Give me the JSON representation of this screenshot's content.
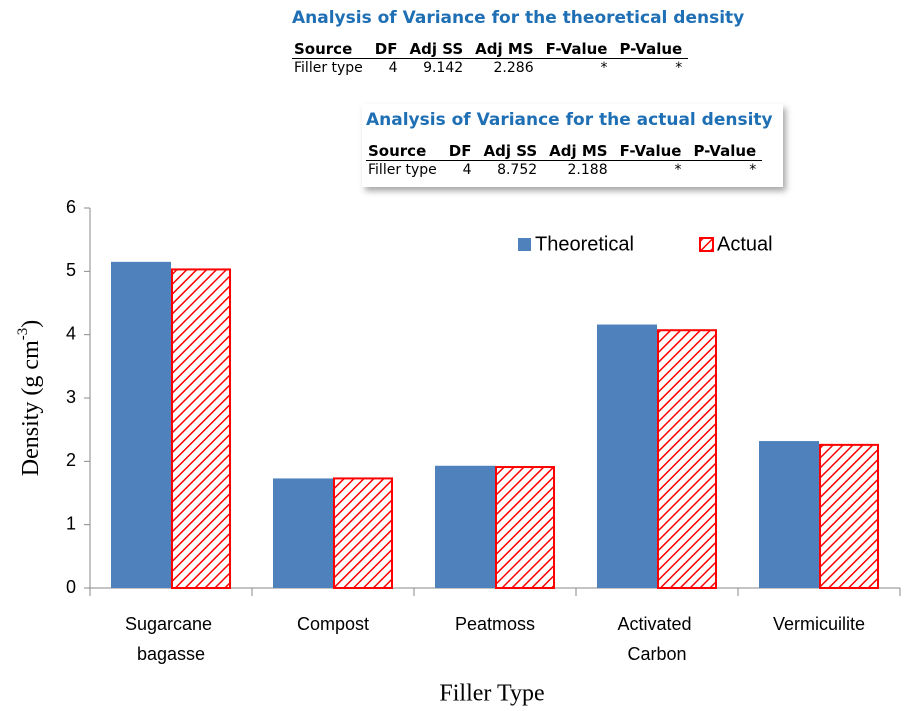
{
  "chart_data": {
    "type": "bar",
    "categories": [
      "Sugarcane bagasse",
      "Compost",
      "Peatmoss",
      "Activated Carbon",
      "Vermicuilite"
    ],
    "series": [
      {
        "name": "Theoretical",
        "color": "#4f81bd",
        "values": [
          5.15,
          1.73,
          1.93,
          4.16,
          2.32
        ]
      },
      {
        "name": "Actual",
        "color": "#ff0000",
        "values": [
          5.03,
          1.73,
          1.91,
          4.07,
          2.26
        ]
      }
    ],
    "xlabel": "Filler Type",
    "ylabel": [
      "Density (g cm",
      "-3",
      ")"
    ],
    "ylim": [
      0,
      6
    ],
    "yticks": [
      0,
      1,
      2,
      3,
      4,
      5,
      6
    ],
    "grid": false,
    "legend": "top-right"
  },
  "tables": [
    {
      "title": "Analysis of Variance for the theoretical density",
      "header": [
        "Source",
        "DF",
        "Adj SS",
        "Adj MS",
        "F-Value",
        "P-Value"
      ],
      "rows": [
        [
          "Filler type",
          4,
          9.142,
          2.286,
          "*",
          "*"
        ]
      ]
    },
    {
      "title": "Analysis of Variance for the actual density",
      "header": [
        "Source",
        "DF",
        "Adj SS",
        "Adj MS",
        "F-Value",
        "P-Value"
      ],
      "rows": [
        [
          "Filler type",
          4,
          8.752,
          2.188,
          "*",
          "*"
        ]
      ]
    }
  ]
}
